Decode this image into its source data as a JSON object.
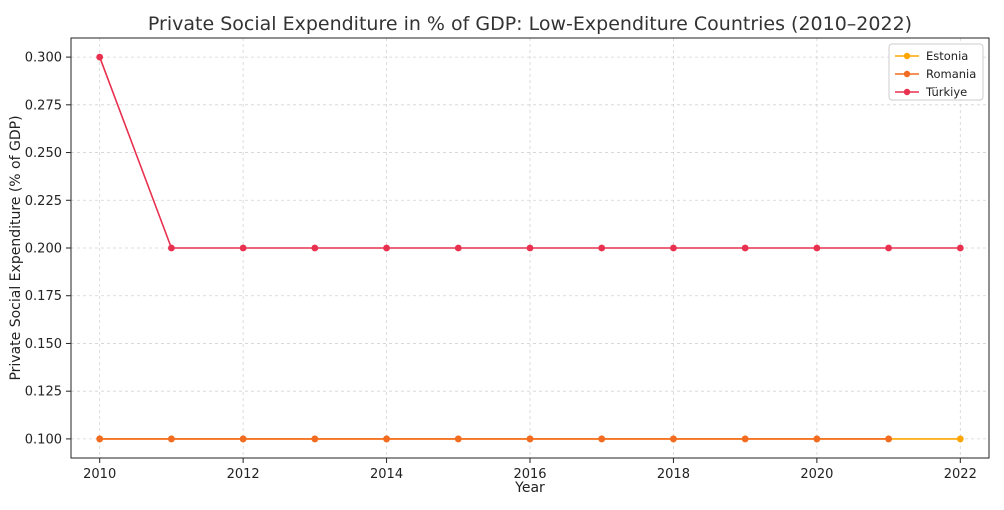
{
  "chart_data": {
    "type": "line",
    "title": "Private Social Expenditure in % of GDP: Low-Expenditure Countries (2010–2022)",
    "xlabel": "Year",
    "ylabel": "Private Social Expenditure (% of GDP)",
    "x": [
      2010,
      2011,
      2012,
      2013,
      2014,
      2015,
      2016,
      2017,
      2018,
      2019,
      2020,
      2021,
      2022
    ],
    "xlim": [
      2009.6,
      2022.4
    ],
    "ylim": [
      0.09,
      0.31
    ],
    "xticks": [
      "2010",
      "2012",
      "2014",
      "2016",
      "2018",
      "2020",
      "2022"
    ],
    "yticks": [
      "0.100",
      "0.125",
      "0.150",
      "0.175",
      "0.200",
      "0.225",
      "0.250",
      "0.275",
      "0.300"
    ],
    "grid": true,
    "legend_position": "top-right",
    "series": [
      {
        "name": "Estonia",
        "color": "#FFA500",
        "x": [
          2010,
          2011,
          2012,
          2013,
          2014,
          2015,
          2016,
          2017,
          2018,
          2019,
          2020,
          2021,
          2022
        ],
        "values": [
          0.1,
          0.1,
          0.1,
          0.1,
          0.1,
          0.1,
          0.1,
          0.1,
          0.1,
          0.1,
          0.1,
          0.1,
          0.1
        ]
      },
      {
        "name": "Romania",
        "color": "#F26B22",
        "x": [
          2010,
          2011,
          2012,
          2013,
          2014,
          2015,
          2016,
          2017,
          2018,
          2019,
          2020,
          2021
        ],
        "values": [
          0.1,
          0.1,
          0.1,
          0.1,
          0.1,
          0.1,
          0.1,
          0.1,
          0.1,
          0.1,
          0.1,
          0.1
        ]
      },
      {
        "name": "Türkiye",
        "color": "#E8304F",
        "x": [
          2010,
          2011,
          2012,
          2013,
          2014,
          2015,
          2016,
          2017,
          2018,
          2019,
          2020,
          2021,
          2022
        ],
        "values": [
          0.3,
          0.2,
          0.2,
          0.2,
          0.2,
          0.2,
          0.2,
          0.2,
          0.2,
          0.2,
          0.2,
          0.2,
          0.2
        ]
      }
    ]
  }
}
